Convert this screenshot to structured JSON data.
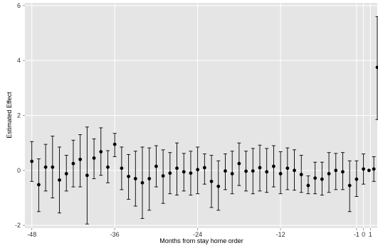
{
  "chart_data": {
    "type": "scatter",
    "xlabel": "Months from stay home order",
    "ylabel": "Estimated Effect",
    "xlim": [
      -49,
      2
    ],
    "ylim": [
      -2.1,
      6.1
    ],
    "x_ticks": [
      -48,
      -36,
      -24,
      -12,
      -1,
      0,
      1
    ],
    "x_tick_labels": [
      "-48",
      "-36",
      "-24",
      "-12",
      "-1",
      "0",
      "1"
    ],
    "y_ticks": [
      -2,
      0,
      2,
      4,
      6
    ],
    "y_tick_labels": [
      "-2",
      "0",
      "2",
      "4",
      "6"
    ],
    "grid": true,
    "colors": {
      "panel": "#e5e5e5",
      "grid": "#ffffff",
      "point": "#000000",
      "axis_text": "#333333"
    },
    "series": [
      {
        "points": [
          {
            "x": -48,
            "y": 0.33,
            "lo": -0.4,
            "hi": 1.05
          },
          {
            "x": -47,
            "y": -0.52,
            "lo": -1.5,
            "hi": 0.42
          },
          {
            "x": -46,
            "y": 0.12,
            "lo": -0.75,
            "hi": 0.95
          },
          {
            "x": -45,
            "y": 0.12,
            "lo": -1.0,
            "hi": 1.25
          },
          {
            "x": -44,
            "y": -0.35,
            "lo": -1.55,
            "hi": 0.85
          },
          {
            "x": -43,
            "y": -0.12,
            "lo": -0.75,
            "hi": 0.55
          },
          {
            "x": -42,
            "y": 0.25,
            "lo": -0.6,
            "hi": 1.1
          },
          {
            "x": -41,
            "y": 0.4,
            "lo": -0.6,
            "hi": 1.3
          },
          {
            "x": -40,
            "y": -0.18,
            "lo": -1.95,
            "hi": 1.58
          },
          {
            "x": -39,
            "y": 0.45,
            "lo": -0.3,
            "hi": 1.15
          },
          {
            "x": -38,
            "y": 0.68,
            "lo": -0.18,
            "hi": 1.55
          },
          {
            "x": -37,
            "y": 0.12,
            "lo": -0.45,
            "hi": 0.72
          },
          {
            "x": -36,
            "y": 0.95,
            "lo": 0.5,
            "hi": 1.35
          },
          {
            "x": -35,
            "y": 0.08,
            "lo": -0.7,
            "hi": 0.85
          },
          {
            "x": -34,
            "y": -0.22,
            "lo": -1.05,
            "hi": 0.58
          },
          {
            "x": -33,
            "y": -0.3,
            "lo": -1.3,
            "hi": 0.7
          },
          {
            "x": -32,
            "y": -0.45,
            "lo": -1.75,
            "hi": 0.85
          },
          {
            "x": -31,
            "y": -0.3,
            "lo": -1.45,
            "hi": 0.82
          },
          {
            "x": -30,
            "y": 0.15,
            "lo": -0.6,
            "hi": 0.9
          },
          {
            "x": -29,
            "y": -0.2,
            "lo": -1.2,
            "hi": 0.75
          },
          {
            "x": -28,
            "y": -0.1,
            "lo": -0.85,
            "hi": 0.65
          },
          {
            "x": -27,
            "y": 0.08,
            "lo": -0.9,
            "hi": 1.0
          },
          {
            "x": -26,
            "y": -0.05,
            "lo": -0.75,
            "hi": 0.62
          },
          {
            "x": -25,
            "y": -0.1,
            "lo": -0.9,
            "hi": 0.7
          },
          {
            "x": -24,
            "y": 0.03,
            "lo": -0.85,
            "hi": 0.85
          },
          {
            "x": -23,
            "y": 0.1,
            "lo": -0.5,
            "hi": 0.6
          },
          {
            "x": -22,
            "y": -0.4,
            "lo": -1.35,
            "hi": 0.55
          },
          {
            "x": -21,
            "y": -0.58,
            "lo": -1.45,
            "hi": 0.35
          },
          {
            "x": -20,
            "y": -0.02,
            "lo": -0.7,
            "hi": 0.6
          },
          {
            "x": -19,
            "y": -0.12,
            "lo": -0.85,
            "hi": 0.7
          },
          {
            "x": -18,
            "y": 0.25,
            "lo": -0.55,
            "hi": 1.0
          },
          {
            "x": -17,
            "y": -0.03,
            "lo": -0.75,
            "hi": 0.7
          },
          {
            "x": -16,
            "y": -0.02,
            "lo": -0.85,
            "hi": 0.8
          },
          {
            "x": -15,
            "y": 0.1,
            "lo": -0.75,
            "hi": 0.92
          },
          {
            "x": -14,
            "y": -0.05,
            "lo": -0.8,
            "hi": 0.8
          },
          {
            "x": -13,
            "y": 0.15,
            "lo": -0.6,
            "hi": 0.9
          },
          {
            "x": -12,
            "y": -0.12,
            "lo": -0.85,
            "hi": 0.68
          },
          {
            "x": -11,
            "y": 0.08,
            "lo": -0.7,
            "hi": 0.82
          },
          {
            "x": -10,
            "y": 0.0,
            "lo": -0.72,
            "hi": 0.75
          },
          {
            "x": -9,
            "y": -0.15,
            "lo": -0.8,
            "hi": 0.55
          },
          {
            "x": -8,
            "y": -0.55,
            "lo": -0.85,
            "hi": -0.2
          },
          {
            "x": -7,
            "y": -0.28,
            "lo": -0.85,
            "hi": 0.3
          },
          {
            "x": -6,
            "y": -0.32,
            "lo": -0.9,
            "hi": 0.3
          },
          {
            "x": -5,
            "y": -0.12,
            "lo": -0.8,
            "hi": 0.65
          },
          {
            "x": -4,
            "y": 0.0,
            "lo": -0.7,
            "hi": 0.62
          },
          {
            "x": -3,
            "y": -0.05,
            "lo": -0.7,
            "hi": 0.65
          },
          {
            "x": -2,
            "y": -0.55,
            "lo": -1.5,
            "hi": 0.35
          },
          {
            "x": -1,
            "y": -0.32,
            "lo": -0.95,
            "hi": 0.35
          },
          {
            "x": 0,
            "y": 0.05,
            "lo": -0.5,
            "hi": 0.6
          },
          {
            "x": 0.8,
            "y": 0.0,
            "lo": null,
            "hi": null
          },
          {
            "x": 1.5,
            "y": 0.05,
            "lo": -0.4,
            "hi": 0.5
          },
          {
            "x": 2,
            "y": 3.75,
            "lo": 1.85,
            "hi": 5.6
          }
        ]
      }
    ]
  }
}
